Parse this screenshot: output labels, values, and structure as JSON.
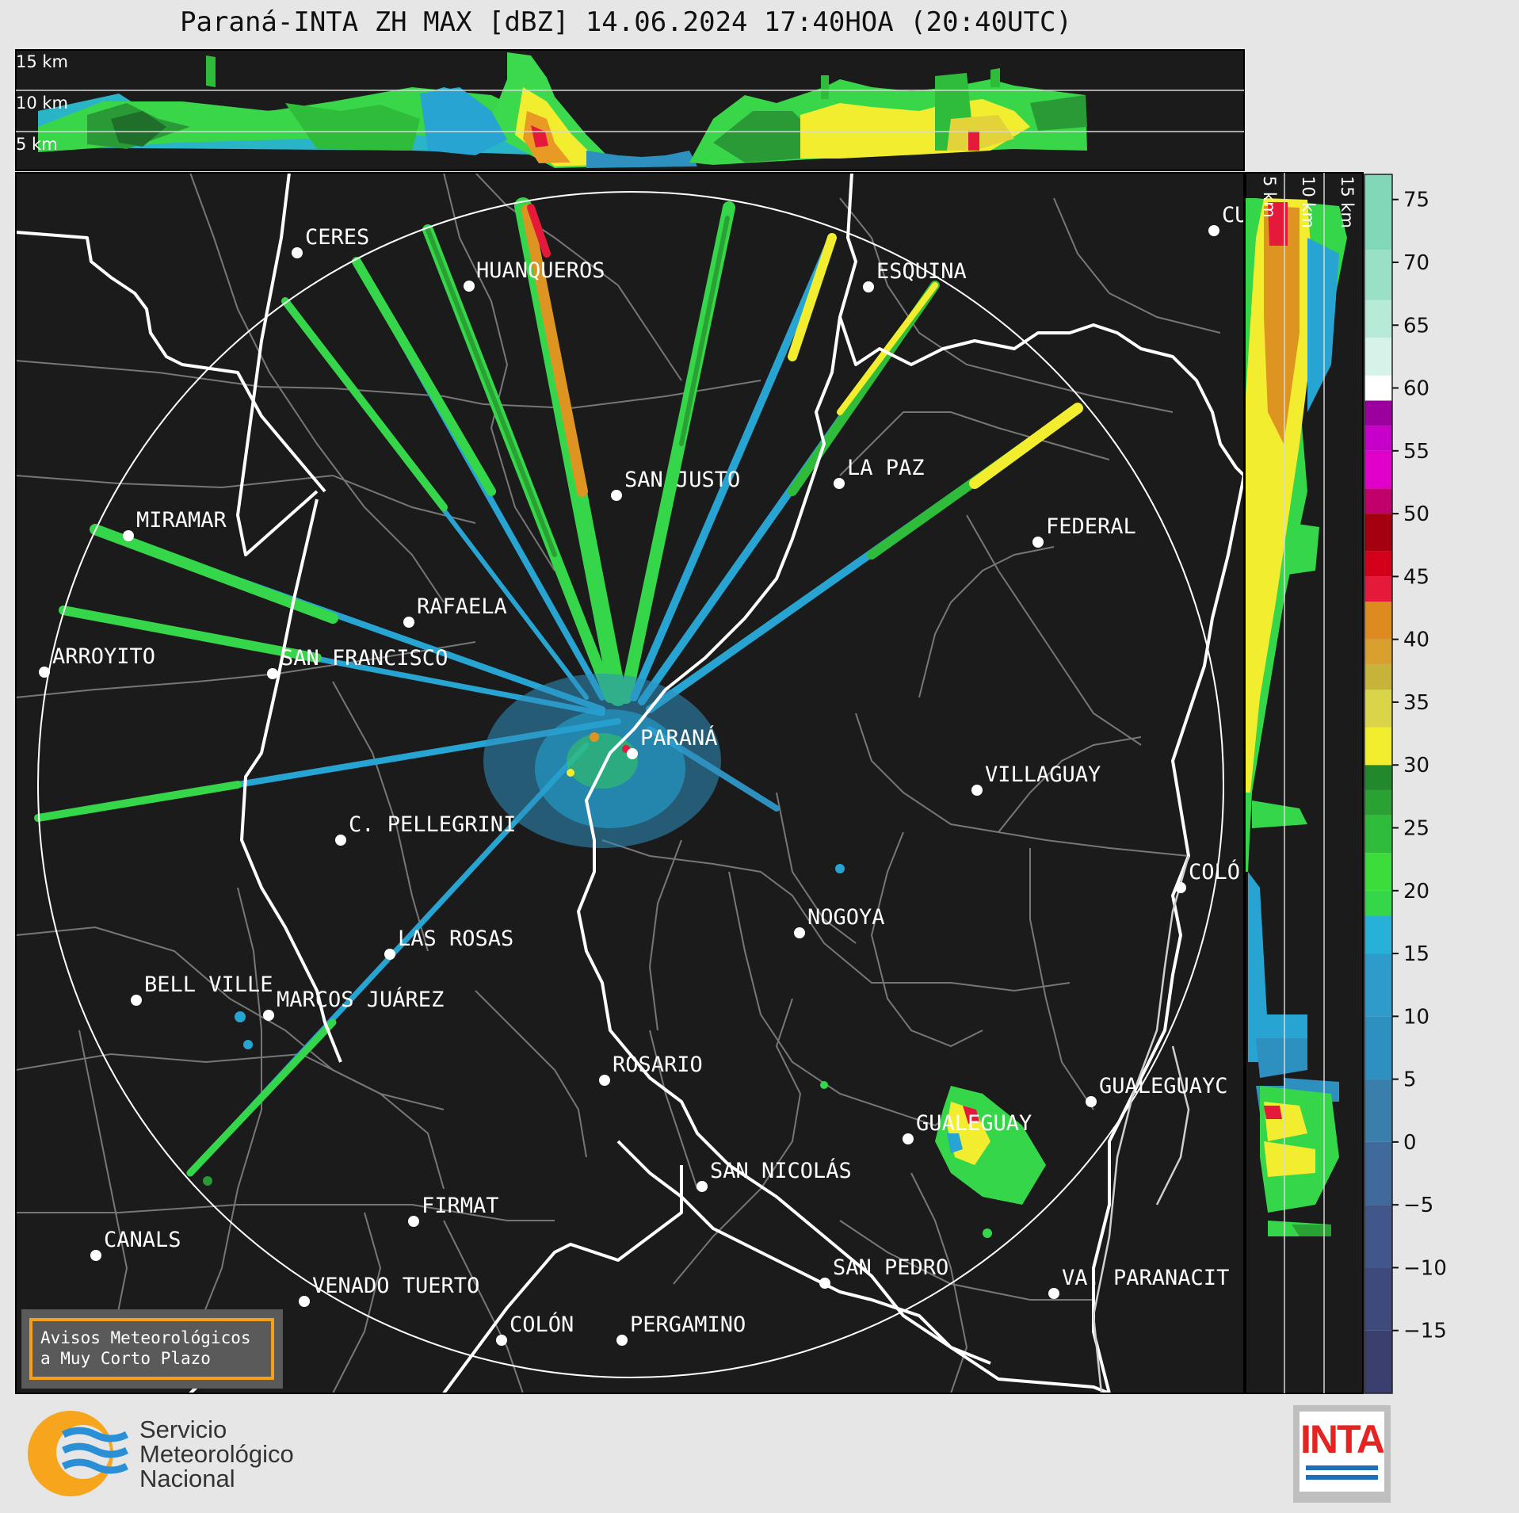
{
  "title": "Paraná-INTA ZH MAX [dBZ] 14.06.2024 17:40HOA (20:40UTC)",
  "top_panel": {
    "height_labels": [
      "15 km",
      "10 km",
      "5 km"
    ]
  },
  "side_panel": {
    "height_labels": [
      "5 km",
      "10 km",
      "15 km"
    ]
  },
  "colorbar": {
    "unit": "dBZ",
    "ticks": [
      "75",
      "70",
      "65",
      "60",
      "55",
      "50",
      "45",
      "40",
      "35",
      "30",
      "25",
      "20",
      "15",
      "10",
      "5",
      "0",
      "−5",
      "−10",
      "−15"
    ],
    "range": [
      -20,
      77
    ],
    "colors": [
      "#3b3f6d",
      "#3e4a7b",
      "#41568a",
      "#3f6a9a",
      "#3a7eab",
      "#2e90bf",
      "#27a4d2",
      "#36d64a",
      "#2fbc3a",
      "#2aa233",
      "#21882b",
      "#f2ee2f",
      "#d9d44a",
      "#c8b33a",
      "#dd9420",
      "#e51a3b",
      "#d4001a",
      "#a40010",
      "#c2006b",
      "#e000c9",
      "#c600c9",
      "#9b009e",
      "#ffffff",
      "#d6f3ea",
      "#b8ead8",
      "#9ae0c6",
      "#80d8b8"
    ]
  },
  "cities": [
    {
      "name": "CERES"
    },
    {
      "name": "HUANQUEROS"
    },
    {
      "name": "ESQUINA"
    },
    {
      "name": "CU"
    },
    {
      "name": "SAN JUSTO"
    },
    {
      "name": "LA PAZ"
    },
    {
      "name": "MIRAMAR"
    },
    {
      "name": "FEDERAL"
    },
    {
      "name": "RAFAELA"
    },
    {
      "name": "ARROYITO"
    },
    {
      "name": "SAN FRANCISCO"
    },
    {
      "name": "PARANÁ"
    },
    {
      "name": "VILLAGUAY"
    },
    {
      "name": "C. PELLEGRINI"
    },
    {
      "name": "COLÓ"
    },
    {
      "name": "NOGOYA"
    },
    {
      "name": "LAS ROSAS"
    },
    {
      "name": "BELL VILLE"
    },
    {
      "name": "MARCOS JUÁREZ"
    },
    {
      "name": "ROSARIO"
    },
    {
      "name": "GUALEGUAYC"
    },
    {
      "name": "GUALEGUAY"
    },
    {
      "name": "SAN NICOLÁS"
    },
    {
      "name": "FIRMAT"
    },
    {
      "name": "CANALS"
    },
    {
      "name": "SAN PEDRO"
    },
    {
      "name": "VA. PARANACIT"
    },
    {
      "name": "VENADO TUERTO"
    },
    {
      "name": "COLÓN"
    },
    {
      "name": "PERGAMINO"
    }
  ],
  "notice": {
    "line1": "Avisos Meteorológicos",
    "line2": "a Muy Corto Plazo",
    "border_color": "#f5a01a"
  },
  "logos": {
    "smn": {
      "line1": "Servicio",
      "line2": "Meteorológico",
      "line3": "Nacional"
    },
    "inta": "INTA"
  }
}
